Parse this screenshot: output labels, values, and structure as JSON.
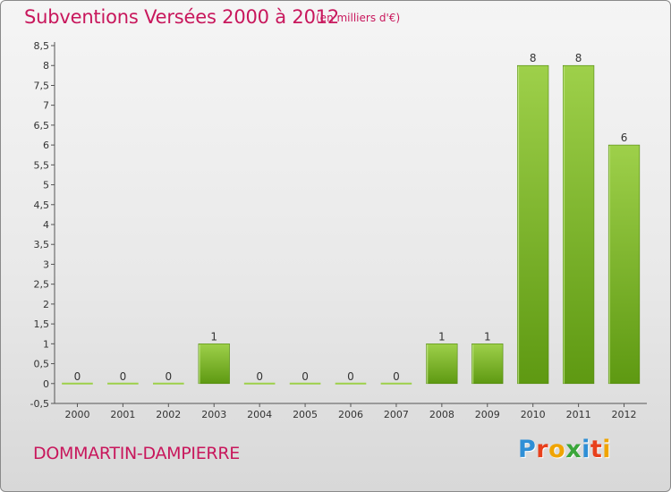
{
  "title": "Subventions Versées 2000 à 2012",
  "subtitle": "(en milliers d'€)",
  "commune": "DOMMARTIN-DAMPIERRE",
  "logo": {
    "text": "Proxiti",
    "letters": [
      {
        "ch": "P",
        "color": "#2f8fd6"
      },
      {
        "ch": "r",
        "color": "#e8401c"
      },
      {
        "ch": "o",
        "color": "#f0a400"
      },
      {
        "ch": "x",
        "color": "#3aa63a"
      },
      {
        "ch": "i",
        "color": "#2f8fd6"
      },
      {
        "ch": "t",
        "color": "#e8401c"
      },
      {
        "ch": "i",
        "color": "#f0a400"
      }
    ]
  },
  "colors": {
    "title": "#c8175c",
    "bar_light": "#9ed04a",
    "bar_dark": "#5e9912",
    "axis": "#555555",
    "text": "#333333"
  },
  "chart_data": {
    "type": "bar",
    "categories": [
      "2000",
      "2001",
      "2002",
      "2003",
      "2004",
      "2005",
      "2006",
      "2007",
      "2008",
      "2009",
      "2010",
      "2011",
      "2012"
    ],
    "values": [
      0,
      0,
      0,
      1,
      0,
      0,
      0,
      0,
      1,
      1,
      8,
      8,
      6
    ],
    "data_labels": [
      "0",
      "0",
      "0",
      "1",
      "0",
      "0",
      "0",
      "0",
      "1",
      "1",
      "8",
      "8",
      "6"
    ],
    "ylim": [
      -0.5,
      8.5
    ],
    "yticks": [
      -0.5,
      0,
      0.5,
      1,
      1.5,
      2,
      2.5,
      3,
      3.5,
      4,
      4.5,
      5,
      5.5,
      6,
      6.5,
      7,
      7.5,
      8,
      8.5
    ],
    "ytick_labels": [
      "-0,5",
      "0",
      "0,5",
      "1",
      "1,5",
      "2",
      "2,5",
      "3",
      "3,5",
      "4",
      "4,5",
      "5",
      "5,5",
      "6",
      "6,5",
      "7",
      "7,5",
      "8",
      "8,5"
    ],
    "grid": false,
    "legend": "none"
  }
}
